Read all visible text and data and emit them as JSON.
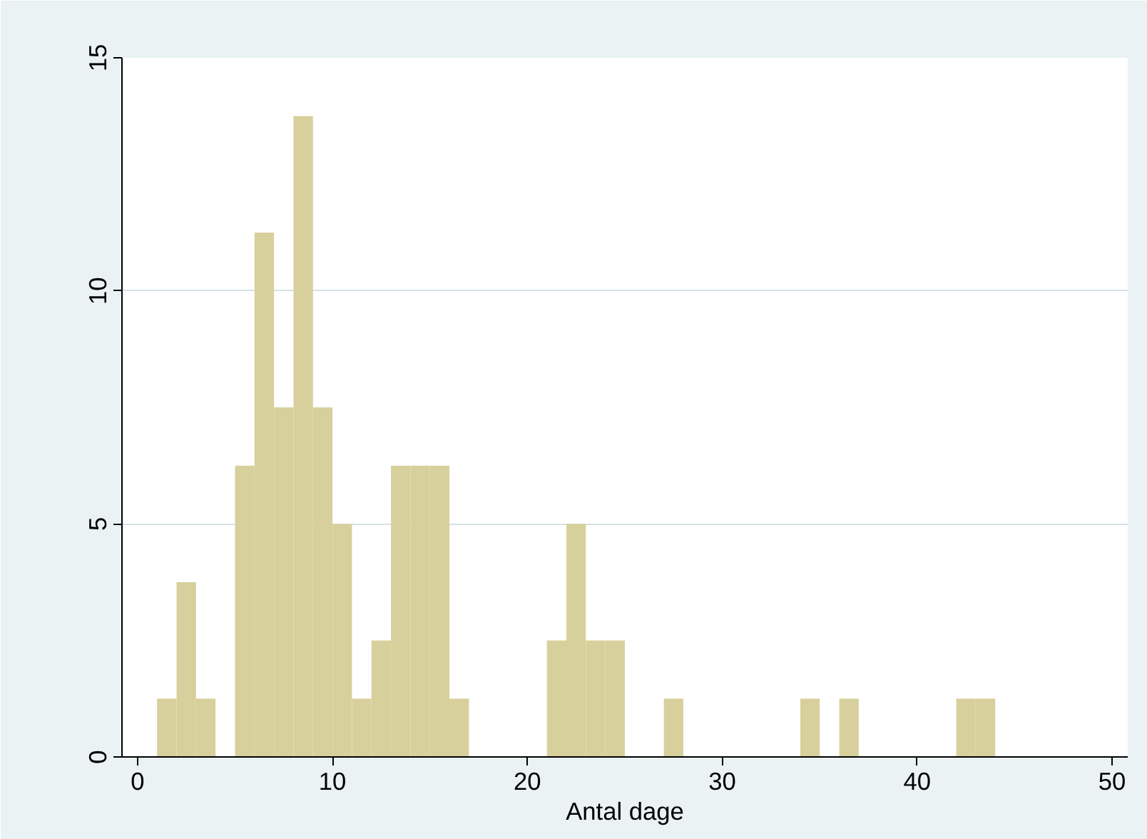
{
  "chart_data": {
    "type": "histogram",
    "xlabel": "Antal dage",
    "bins": [
      1,
      2,
      3,
      4,
      5,
      6,
      7,
      8,
      9,
      10,
      11,
      12,
      13,
      14,
      15,
      16,
      17,
      21,
      22,
      23,
      24,
      25,
      27,
      28,
      34,
      35,
      36,
      37,
      42,
      43,
      44
    ],
    "values": [
      1.25,
      3.75,
      1.25,
      0,
      6.25,
      11.25,
      7.5,
      13.75,
      7.5,
      5,
      1.25,
      2.5,
      6.25,
      6.25,
      6.25,
      1.25,
      0,
      2.5,
      5,
      2.5,
      2.5,
      0,
      1.25,
      0,
      1.25,
      0,
      1.25,
      0,
      1.25,
      1.25
    ],
    "color": "#d8d09c",
    "xlim": [
      -0.8,
      50.8
    ],
    "ylim": [
      0,
      15
    ],
    "xticks": [
      0,
      10,
      20,
      30,
      40,
      50
    ],
    "yticks": [
      0,
      5,
      10,
      15
    ],
    "grid": "y"
  }
}
